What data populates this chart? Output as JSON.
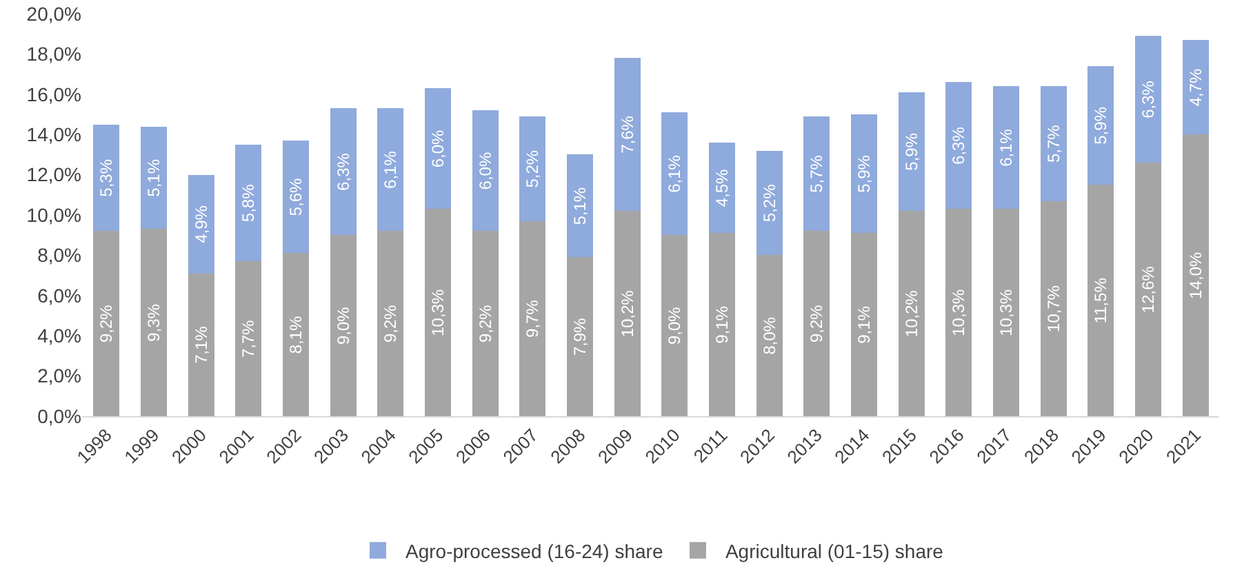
{
  "chart_data": {
    "type": "bar",
    "stacked": true,
    "legend": "bottom",
    "grid": false,
    "categories": [
      "1998",
      "1999",
      "2000",
      "2001",
      "2002",
      "2003",
      "2004",
      "2005",
      "2006",
      "2007",
      "2008",
      "2009",
      "2010",
      "2011",
      "2012",
      "2013",
      "2014",
      "2015",
      "2016",
      "2017",
      "2018",
      "2019",
      "2020",
      "2021"
    ],
    "ylim": [
      0,
      20
    ],
    "yticks": [
      {
        "value": 0,
        "label": "0,0%"
      },
      {
        "value": 2,
        "label": "2,0%"
      },
      {
        "value": 4,
        "label": "4,0%"
      },
      {
        "value": 6,
        "label": "6,0%"
      },
      {
        "value": 8,
        "label": "8,0%"
      },
      {
        "value": 10,
        "label": "10,0%"
      },
      {
        "value": 12,
        "label": "12,0%"
      },
      {
        "value": 14,
        "label": "14,0%"
      },
      {
        "value": 16,
        "label": "16,0%"
      },
      {
        "value": 18,
        "label": "18,0%"
      },
      {
        "value": 20,
        "label": "20,0%"
      }
    ],
    "series": [
      {
        "name": "Agricultural (01-15) share",
        "color": "#a5a5a5",
        "values": [
          9.2,
          9.3,
          7.1,
          7.7,
          8.1,
          9.0,
          9.2,
          10.3,
          9.2,
          9.7,
          7.9,
          10.2,
          9.0,
          9.1,
          8.0,
          9.2,
          9.1,
          10.2,
          10.3,
          10.3,
          10.7,
          11.5,
          12.6,
          14.0
        ],
        "value_labels": [
          "9,2%",
          "9,3%",
          "7,1%",
          "7,7%",
          "8,1%",
          "9,0%",
          "9,2%",
          "10,3%",
          "9,2%",
          "9,7%",
          "7,9%",
          "10,2%",
          "9,0%",
          "9,1%",
          "8,0%",
          "9,2%",
          "9,1%",
          "10,2%",
          "10,3%",
          "10,3%",
          "10,7%",
          "11,5%",
          "12,6%",
          "14,0%"
        ]
      },
      {
        "name": "Agro-processed (16-24) share",
        "color": "#8faadc",
        "values": [
          5.3,
          5.1,
          4.9,
          5.8,
          5.6,
          6.3,
          6.1,
          6.0,
          6.0,
          5.2,
          5.1,
          7.6,
          6.1,
          4.5,
          5.2,
          5.7,
          5.9,
          5.9,
          6.3,
          6.1,
          5.7,
          5.9,
          6.3,
          4.7
        ],
        "value_labels": [
          "5,3%",
          "5,1%",
          "4,9%",
          "5,8%",
          "5,6%",
          "6,3%",
          "6,1%",
          "6,0%",
          "6,0%",
          "5,2%",
          "5,1%",
          "7,6%",
          "6,1%",
          "4,5%",
          "5,2%",
          "5,7%",
          "5,9%",
          "5,9%",
          "6,3%",
          "6,1%",
          "5,7%",
          "5,9%",
          "6,3%",
          "4,7%"
        ]
      }
    ]
  }
}
